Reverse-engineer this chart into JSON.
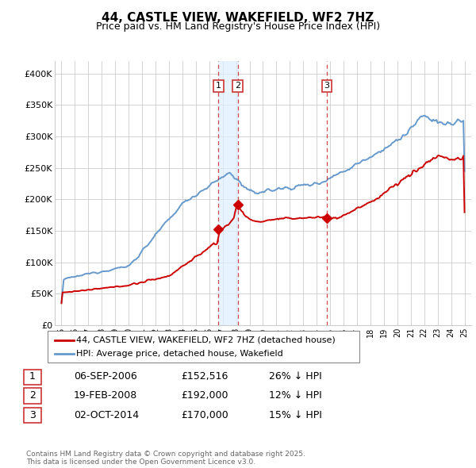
{
  "title": "44, CASTLE VIEW, WAKEFIELD, WF2 7HZ",
  "subtitle": "Price paid vs. HM Land Registry's House Price Index (HPI)",
  "ylabel_ticks": [
    "£0",
    "£50K",
    "£100K",
    "£150K",
    "£200K",
    "£250K",
    "£300K",
    "£350K",
    "£400K"
  ],
  "ytick_values": [
    0,
    50000,
    100000,
    150000,
    200000,
    250000,
    300000,
    350000,
    400000
  ],
  "ylim": [
    0,
    420000
  ],
  "hpi_color": "#6699cc",
  "price_color": "#cc0000",
  "vline_color": "#cc3333",
  "shade_color": "#ddeeff",
  "grid_color": "#cccccc",
  "bg_color": "#ffffff",
  "transactions": [
    {
      "id": 1,
      "date_label": "06-SEP-2006",
      "price": 152516,
      "price_str": "£152,516",
      "pct": "26%",
      "direction": "↓",
      "x_year": 2006.68
    },
    {
      "id": 2,
      "date_label": "19-FEB-2008",
      "price": 192000,
      "price_str": "£192,000",
      "pct": "12%",
      "direction": "↓",
      "x_year": 2008.13
    },
    {
      "id": 3,
      "date_label": "02-OCT-2014",
      "price": 170000,
      "price_str": "£170,000",
      "pct": "15%",
      "direction": "↓",
      "x_year": 2014.75
    }
  ],
  "legend_label_price": "44, CASTLE VIEW, WAKEFIELD, WF2 7HZ (detached house)",
  "legend_label_hpi": "HPI: Average price, detached house, Wakefield",
  "footer": "Contains HM Land Registry data © Crown copyright and database right 2025.\nThis data is licensed under the Open Government Licence v3.0.",
  "xlim": [
    1994.5,
    2025.5
  ],
  "xtick_years": [
    1995,
    1996,
    1997,
    1998,
    1999,
    2000,
    2001,
    2002,
    2003,
    2004,
    2005,
    2006,
    2007,
    2008,
    2009,
    2010,
    2011,
    2012,
    2013,
    2014,
    2015,
    2016,
    2017,
    2018,
    2019,
    2020,
    2021,
    2022,
    2023,
    2024,
    2025
  ]
}
